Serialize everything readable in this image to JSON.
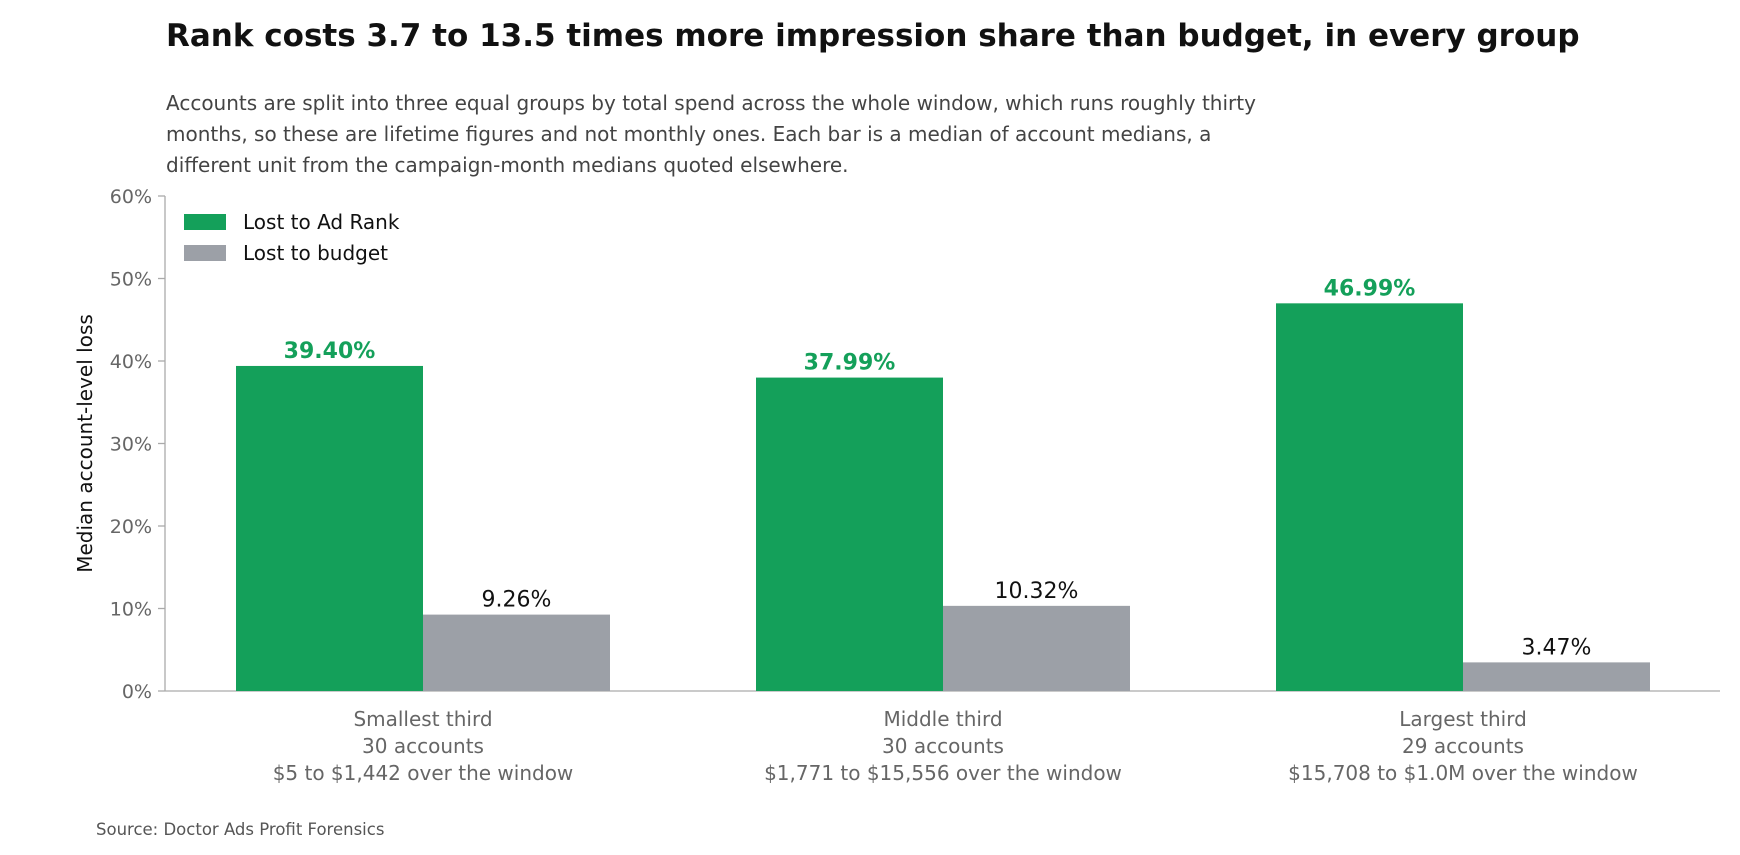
{
  "title": "Rank costs 3.7 to 13.5 times more impression share than budget, in every group",
  "subtitle": "Accounts are split into three equal groups by total spend across the whole window, which runs roughly thirty months, so these are lifetime figures and not monthly ones. Each bar is a median of account medians, a different unit from the campaign-month medians quoted elsewhere.",
  "source": "Source: Doctor Ads Profit Forensics",
  "colors": {
    "rank": "#14a05a",
    "budget": "#9ca0a7",
    "axis": "#aaaaaa"
  },
  "chart_data": {
    "type": "bar",
    "categories": [
      [
        "Smallest third",
        "30 accounts",
        "$5 to $1,442 over the window"
      ],
      [
        "Middle third",
        "30 accounts",
        "$1,771 to $15,556 over the window"
      ],
      [
        "Largest third",
        "29 accounts",
        "$15,708 to $1.0M over the window"
      ]
    ],
    "series": [
      {
        "name": "Lost to Ad Rank",
        "values": [
          39.4,
          37.99,
          46.99
        ],
        "labels": [
          "39.40%",
          "37.99%",
          "46.99%"
        ]
      },
      {
        "name": "Lost to budget",
        "values": [
          9.26,
          10.32,
          3.47
        ],
        "labels": [
          "9.26%",
          "10.32%",
          "3.47%"
        ]
      }
    ],
    "ylabel": "Median account-level loss",
    "xlabel": "",
    "ylim": [
      0,
      60
    ],
    "yticks": [
      "0%",
      "10%",
      "20%",
      "30%",
      "40%",
      "50%",
      "60%"
    ],
    "legend": "top-left",
    "grid": false
  }
}
